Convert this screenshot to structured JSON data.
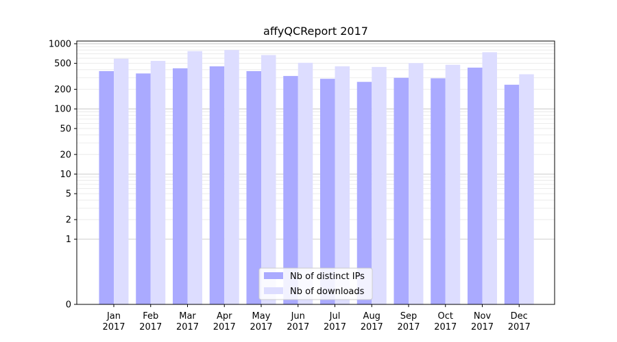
{
  "chart_data": {
    "type": "bar",
    "title": "affyQCReport 2017",
    "xlabel": "",
    "ylabel": "",
    "y_scale": "symlog",
    "ylim": [
      0,
      1100
    ],
    "y_tick_labels": [
      "0",
      "1",
      "2",
      "5",
      "10",
      "20",
      "50",
      "100",
      "200",
      "500",
      "1000"
    ],
    "categories": [
      {
        "month": "Jan",
        "year": "2017"
      },
      {
        "month": "Feb",
        "year": "2017"
      },
      {
        "month": "Mar",
        "year": "2017"
      },
      {
        "month": "Apr",
        "year": "2017"
      },
      {
        "month": "May",
        "year": "2017"
      },
      {
        "month": "Jun",
        "year": "2017"
      },
      {
        "month": "Jul",
        "year": "2017"
      },
      {
        "month": "Aug",
        "year": "2017"
      },
      {
        "month": "Sep",
        "year": "2017"
      },
      {
        "month": "Oct",
        "year": "2017"
      },
      {
        "month": "Nov",
        "year": "2017"
      },
      {
        "month": "Dec",
        "year": "2017"
      }
    ],
    "series": [
      {
        "name": "Nb of distinct IPs",
        "color": "#aaaaff",
        "values": [
          380,
          350,
          420,
          450,
          380,
          320,
          290,
          260,
          300,
          295,
          430,
          235
        ]
      },
      {
        "name": "Nb of downloads",
        "color": "#ddddff",
        "values": [
          590,
          545,
          770,
          800,
          670,
          510,
          450,
          440,
          505,
          475,
          740,
          340
        ]
      }
    ],
    "grid": "horizontal major and minor",
    "legend_position": "lower-center"
  }
}
